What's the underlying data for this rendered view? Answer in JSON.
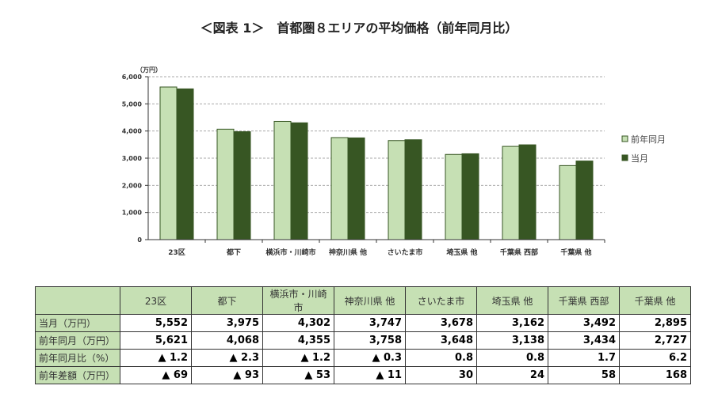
{
  "title": "＜図表 1＞　首都圏８エリアの平均価格（前年同月比）",
  "chart_data": {
    "type": "bar",
    "unit_label": "（万円）",
    "categories": [
      "23区",
      "都下",
      "横浜市・川崎市",
      "神奈川県 他",
      "さいたま市",
      "埼玉県 他",
      "千葉県 西部",
      "千葉県 他"
    ],
    "series": [
      {
        "name": "前年同月",
        "color": "#c6e0b4",
        "values": [
          5621,
          4068,
          4355,
          3758,
          3648,
          3138,
          3434,
          2727
        ]
      },
      {
        "name": "当月",
        "color": "#375623",
        "values": [
          5552,
          3975,
          4302,
          3747,
          3678,
          3162,
          3492,
          2895
        ]
      }
    ],
    "ylim": [
      0,
      6000
    ],
    "yticks": [
      "0",
      "1,000",
      "2,000",
      "3,000",
      "4,000",
      "5,000",
      "6,000"
    ],
    "grid": true,
    "legend": "right"
  },
  "table": {
    "headers": [
      "23区",
      "都下",
      "横浜市・川崎市",
      "神奈川県 他",
      "さいたま市",
      "埼玉県 他",
      "千葉県 西部",
      "千葉県 他"
    ],
    "rows": [
      {
        "label": "当月（万円）",
        "cells": [
          "5,552",
          "3,975",
          "4,302",
          "3,747",
          "3,678",
          "3,162",
          "3,492",
          "2,895"
        ]
      },
      {
        "label": "前年同月（万円）",
        "cells": [
          "5,621",
          "4,068",
          "4,355",
          "3,758",
          "3,648",
          "3,138",
          "3,434",
          "2,727"
        ]
      },
      {
        "label": "前年同月比（%）",
        "cells": [
          "▲ 1.2",
          "▲ 2.3",
          "▲ 1.2",
          "▲ 0.3",
          "0.8",
          "0.8",
          "1.7",
          "6.2"
        ]
      },
      {
        "label": "前年差額（万円）",
        "cells": [
          "▲ 69",
          "▲ 93",
          "▲ 53",
          "▲ 11",
          "30",
          "24",
          "58",
          "168"
        ]
      }
    ]
  }
}
